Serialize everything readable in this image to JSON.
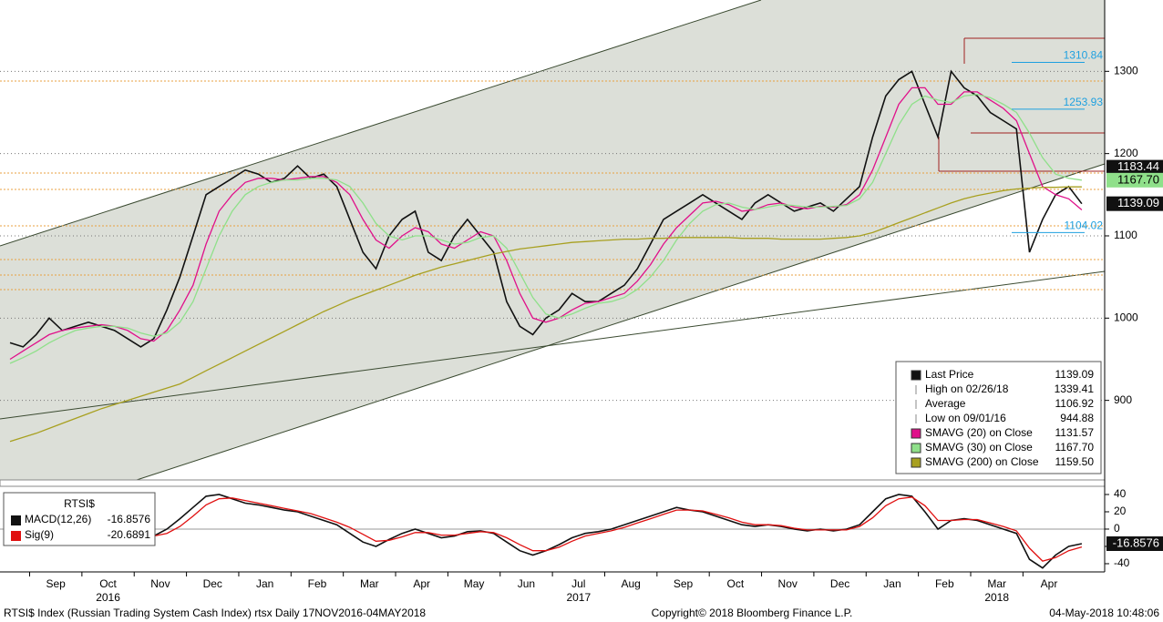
{
  "chart_data": [
    {
      "type": "line",
      "categories": [
        null,
        null,
        null,
        "Sep",
        null,
        null,
        null,
        "Oct",
        null,
        null,
        null,
        "Nov",
        null,
        null,
        null,
        "Dec",
        null,
        null,
        null,
        "Jan",
        null,
        null,
        null,
        "Feb",
        null,
        null,
        null,
        "Mar",
        null,
        null,
        null,
        "Apr",
        null,
        null,
        null,
        "May",
        null,
        null,
        null,
        "Jun",
        null,
        null,
        null,
        "Jul",
        null,
        null,
        null,
        "Aug",
        null,
        null,
        null,
        "Sep",
        null,
        null,
        null,
        "Oct",
        null,
        null,
        null,
        "Nov",
        null,
        null,
        null,
        "Dec",
        null,
        null,
        null,
        "Jan",
        null,
        null,
        null,
        "Feb",
        null,
        null,
        null,
        "Mar",
        null,
        null,
        null,
        "Apr",
        null,
        null,
        null
      ],
      "years": [
        null,
        null,
        null,
        null,
        null,
        null,
        null,
        "2016",
        null,
        null,
        null,
        null,
        null,
        null,
        null,
        null,
        null,
        null,
        null,
        null,
        null,
        null,
        null,
        null,
        null,
        null,
        null,
        null,
        null,
        null,
        null,
        null,
        null,
        null,
        null,
        null,
        null,
        null,
        null,
        null,
        null,
        null,
        null,
        "2017",
        null,
        null,
        null,
        null,
        null,
        null,
        null,
        null,
        null,
        null,
        null,
        null,
        null,
        null,
        null,
        null,
        null,
        null,
        null,
        null,
        null,
        null,
        null,
        null,
        null,
        null,
        null,
        null,
        null,
        null,
        null,
        "2018",
        null,
        null,
        null,
        null,
        null,
        null,
        null
      ],
      "ylim": [
        803.3,
        1386.7
      ],
      "yticks": [
        900,
        1000,
        1100,
        1200,
        1300
      ],
      "grid": true,
      "series": [
        {
          "name": "Last Price",
          "color": "#111111",
          "legend_value": "1139.09",
          "values": [
            970,
            965,
            980,
            1000,
            985,
            990,
            995,
            990,
            985,
            975,
            965,
            975,
            1010,
            1050,
            1100,
            1150,
            1160,
            1170,
            1180,
            1175,
            1165,
            1170,
            1185,
            1170,
            1175,
            1160,
            1120,
            1080,
            1060,
            1100,
            1120,
            1130,
            1080,
            1070,
            1100,
            1120,
            1100,
            1080,
            1020,
            990,
            980,
            1000,
            1010,
            1030,
            1020,
            1020,
            1030,
            1040,
            1060,
            1090,
            1120,
            1130,
            1140,
            1150,
            1140,
            1130,
            1120,
            1140,
            1150,
            1140,
            1130,
            1135,
            1140,
            1130,
            1145,
            1160,
            1220,
            1270,
            1290,
            1300,
            1260,
            1220,
            1300,
            1280,
            1270,
            1250,
            1240,
            1230,
            1080,
            1120,
            1150,
            1160,
            1139.09
          ]
        },
        {
          "name": "SMAVG (20) on Close",
          "color": "#e0108a",
          "legend_value": "1131.57",
          "values": [
            950,
            960,
            970,
            980,
            985,
            988,
            990,
            992,
            990,
            985,
            975,
            972,
            985,
            1010,
            1040,
            1090,
            1130,
            1150,
            1165,
            1170,
            1170,
            1168,
            1170,
            1172,
            1172,
            1165,
            1150,
            1120,
            1095,
            1085,
            1100,
            1110,
            1105,
            1090,
            1085,
            1095,
            1105,
            1100,
            1070,
            1030,
            1000,
            995,
            1000,
            1010,
            1018,
            1020,
            1025,
            1030,
            1045,
            1065,
            1090,
            1110,
            1125,
            1140,
            1142,
            1138,
            1130,
            1132,
            1138,
            1140,
            1135,
            1133,
            1136,
            1135,
            1138,
            1150,
            1180,
            1220,
            1260,
            1280,
            1280,
            1260,
            1260,
            1275,
            1275,
            1265,
            1255,
            1240,
            1200,
            1160,
            1150,
            1145,
            1131.57
          ]
        },
        {
          "name": "SMAVG (30) on Close",
          "color": "#8fe08a",
          "legend_value": "1167.70",
          "values": [
            945,
            952,
            960,
            970,
            978,
            985,
            988,
            990,
            990,
            988,
            982,
            978,
            982,
            995,
            1020,
            1060,
            1100,
            1130,
            1150,
            1160,
            1165,
            1168,
            1168,
            1170,
            1170,
            1168,
            1160,
            1140,
            1115,
            1100,
            1095,
            1100,
            1100,
            1095,
            1090,
            1092,
            1098,
            1100,
            1085,
            1055,
            1025,
            1005,
            1000,
            1005,
            1012,
            1018,
            1020,
            1025,
            1035,
            1050,
            1070,
            1095,
            1115,
            1130,
            1138,
            1140,
            1135,
            1132,
            1135,
            1138,
            1137,
            1135,
            1135,
            1136,
            1137,
            1145,
            1165,
            1200,
            1235,
            1260,
            1270,
            1265,
            1262,
            1270,
            1272,
            1268,
            1260,
            1250,
            1225,
            1195,
            1175,
            1170,
            1167.7
          ]
        },
        {
          "name": "SMAVG (200) on Close",
          "color": "#a8a020",
          "legend_value": "1159.50",
          "values": [
            850,
            855,
            860,
            866,
            872,
            878,
            884,
            890,
            895,
            900,
            905,
            910,
            915,
            920,
            928,
            936,
            944,
            952,
            960,
            968,
            976,
            984,
            992,
            1000,
            1008,
            1015,
            1022,
            1028,
            1034,
            1040,
            1046,
            1052,
            1057,
            1062,
            1066,
            1070,
            1074,
            1078,
            1081,
            1084,
            1086,
            1088,
            1090,
            1092,
            1093,
            1094,
            1095,
            1096,
            1096,
            1097,
            1097,
            1098,
            1098,
            1098,
            1098,
            1098,
            1097,
            1097,
            1097,
            1096,
            1096,
            1096,
            1096,
            1097,
            1098,
            1100,
            1104,
            1110,
            1116,
            1122,
            1128,
            1134,
            1140,
            1145,
            1149,
            1152,
            1155,
            1157,
            1158,
            1159,
            1159,
            1159.5,
            1159.5
          ]
        }
      ],
      "stats": [
        {
          "name": "High on 02/26/18",
          "value": "1339.41"
        },
        {
          "name": "Average",
          "value": "1106.92"
        },
        {
          "name": "Low on 09/01/16",
          "value": "944.88"
        }
      ],
      "annotations": [
        1310.84,
        1253.93,
        1104.02
      ],
      "value_boxes": [
        {
          "value": 1183.44,
          "color": "#111111"
        },
        {
          "value": 1167.7,
          "label": "1167.70",
          "color": "#8fe08a"
        },
        {
          "value": 1139.09,
          "color": "#111111"
        }
      ]
    },
    {
      "type": "line",
      "title": "RTSI$",
      "ylim": [
        -49.5,
        46.3
      ],
      "yticks": [
        -40,
        -20,
        0,
        20,
        40
      ],
      "series": [
        {
          "name": "MACD(12,26)",
          "color": "#111111",
          "legend_value": "-16.8576",
          "values": [
            -5,
            0,
            5,
            8,
            5,
            3,
            0,
            -2,
            -5,
            -8,
            -10,
            -8,
            0,
            12,
            25,
            38,
            40,
            35,
            30,
            28,
            25,
            22,
            20,
            15,
            10,
            5,
            -5,
            -15,
            -20,
            -12,
            -5,
            0,
            -5,
            -10,
            -8,
            -3,
            -2,
            -5,
            -15,
            -25,
            -30,
            -25,
            -18,
            -10,
            -5,
            -3,
            0,
            5,
            10,
            15,
            20,
            25,
            22,
            20,
            15,
            10,
            5,
            3,
            5,
            3,
            0,
            -2,
            0,
            -2,
            0,
            5,
            20,
            35,
            40,
            38,
            20,
            0,
            10,
            12,
            10,
            5,
            0,
            -5,
            -35,
            -45,
            -30,
            -20,
            -16.8576
          ]
        },
        {
          "name": "Sig(9)",
          "color": "#e01010",
          "legend_value": "-20.6891",
          "values": [
            -3,
            -2,
            1,
            4,
            5,
            4,
            2,
            0,
            -2,
            -5,
            -7,
            -8,
            -5,
            3,
            15,
            28,
            35,
            36,
            33,
            30,
            27,
            24,
            21,
            18,
            13,
            8,
            2,
            -6,
            -14,
            -13,
            -9,
            -4,
            -4,
            -7,
            -7,
            -5,
            -3,
            -4,
            -10,
            -18,
            -25,
            -25,
            -21,
            -14,
            -8,
            -5,
            -2,
            2,
            7,
            12,
            17,
            22,
            22,
            21,
            17,
            13,
            8,
            5,
            5,
            4,
            1,
            -1,
            -1,
            -1,
            -1,
            3,
            13,
            27,
            35,
            37,
            27,
            10,
            10,
            11,
            11,
            7,
            3,
            -2,
            -22,
            -37,
            -33,
            -25,
            -20.6891
          ]
        }
      ],
      "value_boxes": [
        {
          "value": -16.8576,
          "color": "#111111"
        }
      ]
    }
  ],
  "footer": {
    "left": "RTSI$ Index (Russian Trading System Cash Index) rtsx  Daily 17NOV2016-04MAY2018",
    "center": "Copyright© 2018 Bloomberg Finance L.P.",
    "right": "04-May-2018 10:48:06"
  }
}
